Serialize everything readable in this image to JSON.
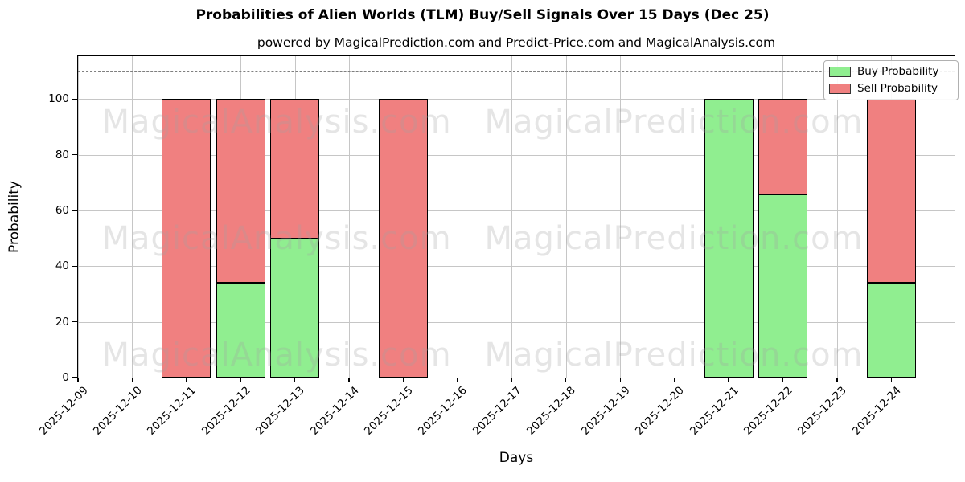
{
  "title": "Probabilities of Alien Worlds (TLM) Buy/Sell Signals Over 15 Days (Dec 25)",
  "subtitle": "powered by MagicalPrediction.com and Predict-Price.com and MagicalAnalysis.com",
  "legend": {
    "items": [
      {
        "label": "Buy Probability",
        "color": "#90ee90"
      },
      {
        "label": "Sell Probability",
        "color": "#f08080"
      }
    ]
  },
  "watermarks": {
    "left": "MagicalAnalysis.com",
    "right": "MagicalPrediction.com"
  },
  "chart_data": {
    "type": "bar",
    "stacked": true,
    "title": "Probabilities of Alien Worlds (TLM) Buy/Sell Signals Over 15 Days (Dec 25)",
    "xlabel": "Days",
    "ylabel": "Probability",
    "categories": [
      "2025-12-09",
      "2025-12-10",
      "2025-12-11",
      "2025-12-12",
      "2025-12-13",
      "2025-12-14",
      "2025-12-15",
      "2025-12-16",
      "2025-12-17",
      "2025-12-18",
      "2025-12-19",
      "2025-12-20",
      "2025-12-21",
      "2025-12-22",
      "2025-12-23",
      "2025-12-24"
    ],
    "series": [
      {
        "name": "Buy Probability",
        "color": "#90ee90",
        "values": [
          0,
          0,
          0,
          33.9,
          50,
          0,
          0,
          0,
          0,
          0,
          0,
          0,
          100,
          65.8,
          0,
          33.9
        ]
      },
      {
        "name": "Sell Probability",
        "color": "#f08080",
        "values": [
          0,
          0,
          100,
          66.1,
          50,
          0,
          100,
          0,
          0,
          0,
          0,
          0,
          0,
          34.2,
          0,
          66.1
        ]
      }
    ],
    "yticks": [
      0,
      20,
      40,
      60,
      80,
      100
    ],
    "ylim": [
      0,
      115.4
    ],
    "threshold_line": 110,
    "grid": true,
    "legend_position": "upper right",
    "bar_edge_color": "#000000",
    "grid_color": "#c6c6c6",
    "threshold_color": "#7f7f7f"
  }
}
